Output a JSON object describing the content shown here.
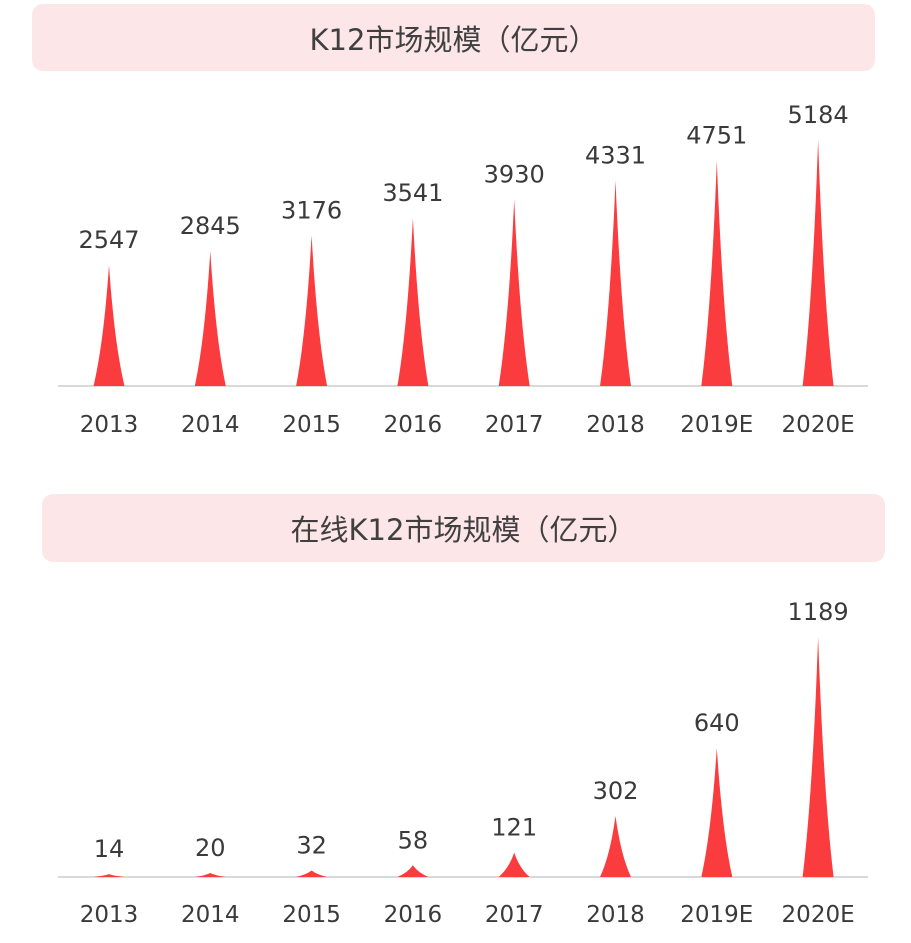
{
  "colors": {
    "spike": "#fb3c3f",
    "title_bg": "#fde6e7",
    "axis": "#d9d9d9",
    "text": "#3a3a3a"
  },
  "chart_data": [
    {
      "type": "bar",
      "bar_style": "pointed-peak",
      "title": "K12市场规模（亿元）",
      "xlabel": "",
      "ylabel": "",
      "categories": [
        "2013",
        "2014",
        "2015",
        "2016",
        "2017",
        "2018",
        "2019E",
        "2020E"
      ],
      "values": [
        2547,
        2845,
        3176,
        3541,
        3930,
        4331,
        4751,
        5184
      ],
      "data_labels": true,
      "grid": false,
      "legend": null,
      "ylim": [
        0,
        5184
      ]
    },
    {
      "type": "bar",
      "bar_style": "pointed-peak",
      "title": "在线K12市场规模（亿元）",
      "xlabel": "",
      "ylabel": "",
      "categories": [
        "2013",
        "2014",
        "2015",
        "2016",
        "2017",
        "2018",
        "2019E",
        "2020E"
      ],
      "values": [
        14,
        20,
        32,
        58,
        121,
        302,
        640,
        1189
      ],
      "data_labels": true,
      "grid": false,
      "legend": null,
      "ylim": [
        0,
        1189
      ]
    }
  ]
}
